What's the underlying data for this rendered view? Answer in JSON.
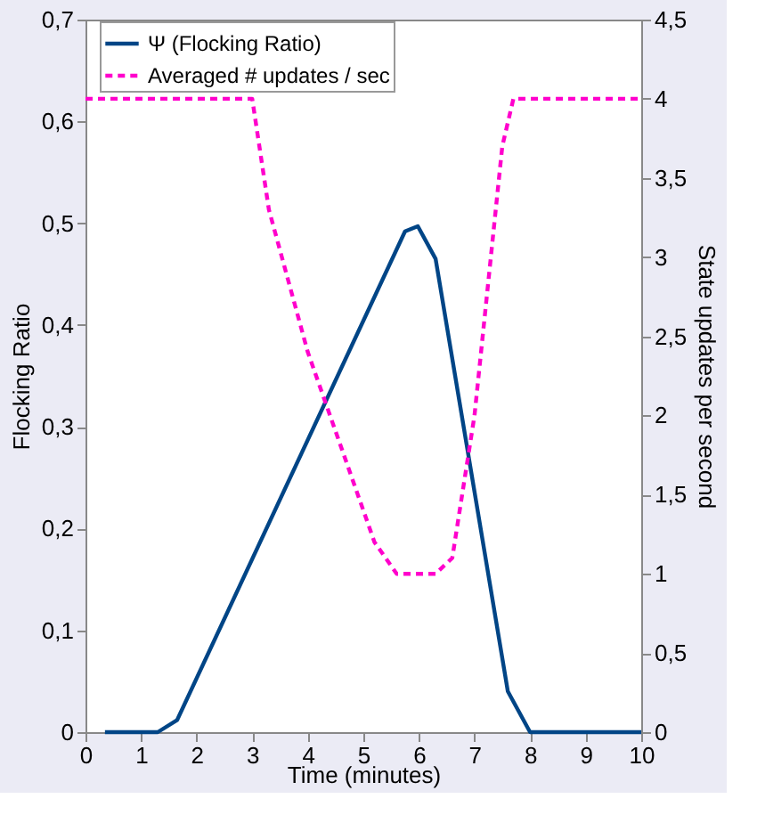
{
  "chart_data": {
    "type": "line",
    "xlabel": "Time (minutes)",
    "ylabel": "Flocking Ratio",
    "y2label": "State updates per second",
    "xlim": [
      0,
      10
    ],
    "xticks": [
      0,
      1,
      2,
      3,
      4,
      5,
      6,
      7,
      8,
      9,
      10
    ],
    "ylim": [
      0,
      0.7
    ],
    "yticks": [
      0,
      {
        "value": 0.1,
        "label": "0,1"
      },
      {
        "value": 0.2,
        "label": "0,2"
      },
      {
        "value": 0.3,
        "label": "0,3"
      },
      {
        "value": 0.4,
        "label": "0,4"
      },
      {
        "value": 0.5,
        "label": "0,5"
      },
      {
        "value": 0.6,
        "label": "0,6"
      },
      {
        "value": 0.7,
        "label": "0,7"
      }
    ],
    "y2lim": [
      0,
      4.5
    ],
    "y2ticks": [
      0,
      {
        "value": 0.5,
        "label": "0,5"
      },
      1,
      {
        "value": 1.5,
        "label": "1,5"
      },
      2,
      {
        "value": 2.5,
        "label": "2,5"
      },
      3,
      {
        "value": 3.5,
        "label": "3,5"
      },
      4,
      {
        "value": 4.5,
        "label": "4,5"
      }
    ],
    "legend": "top",
    "grid": false,
    "marker": "none",
    "series": [
      {
        "name": "Ψ (Flocking Ratio)",
        "color": "#004586",
        "line_style": "solid",
        "x": [
          0.35,
          1.3,
          1.65,
          5.75,
          5.98,
          6.3,
          7.6,
          8.0,
          10
        ],
        "values": [
          0,
          0,
          0.012,
          0.492,
          0.497,
          0.465,
          0.04,
          0,
          0
        ]
      },
      {
        "name": "Averaged # updates / sec",
        "color": "#ff00cc",
        "line_style": "dashed",
        "axis": "y2",
        "x": [
          0,
          3,
          3.3,
          4,
          4.6,
          5.2,
          5.6,
          6.3,
          6.6,
          7.0,
          7.5,
          7.7,
          10
        ],
        "values": [
          4,
          4,
          3.3,
          2.4,
          1.8,
          1.2,
          1.0,
          1.0,
          1.1,
          2.0,
          3.7,
          4,
          4
        ]
      }
    ]
  }
}
